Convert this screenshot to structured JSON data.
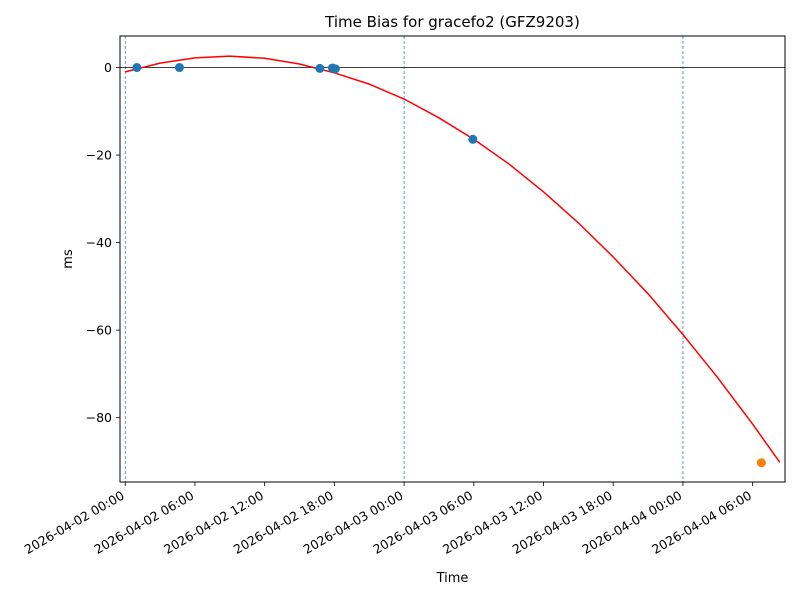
{
  "chart_data": {
    "type": "scatter",
    "title": "Time Bias for gracefo2 (GFZ9203)",
    "xlabel": "Time",
    "ylabel": "ms",
    "x_axis": "datetime",
    "xlim": [
      "2026-04-01T23:33",
      "2026-04-04T08:47"
    ],
    "ylim": [
      -94.7,
      7.2
    ],
    "x_ticks": [
      {
        "value": "2026-04-02T00:00",
        "label": "2026-04-02 00:00"
      },
      {
        "value": "2026-04-02T06:00",
        "label": "2026-04-02 06:00"
      },
      {
        "value": "2026-04-02T12:00",
        "label": "2026-04-02 12:00"
      },
      {
        "value": "2026-04-02T18:00",
        "label": "2026-04-02 18:00"
      },
      {
        "value": "2026-04-03T00:00",
        "label": "2026-04-03 00:00"
      },
      {
        "value": "2026-04-03T06:00",
        "label": "2026-04-03 06:00"
      },
      {
        "value": "2026-04-03T12:00",
        "label": "2026-04-03 12:00"
      },
      {
        "value": "2026-04-03T18:00",
        "label": "2026-04-03 18:00"
      },
      {
        "value": "2026-04-04T00:00",
        "label": "2026-04-04 00:00"
      },
      {
        "value": "2026-04-04T06:00",
        "label": "2026-04-04 06:00"
      }
    ],
    "y_ticks": [
      {
        "value": 0,
        "label": "0"
      },
      {
        "value": -20,
        "label": "−20"
      },
      {
        "value": -40,
        "label": "−40"
      },
      {
        "value": -60,
        "label": "−60"
      },
      {
        "value": -80,
        "label": "−80"
      }
    ],
    "vertical_lines": [
      "2026-04-02T00:00",
      "2026-04-03T00:00",
      "2026-04-04T00:00"
    ],
    "horizontal_line": 0,
    "fit_curve": {
      "color": "#ff0000",
      "points": [
        {
          "x": "2026-04-02T00:00",
          "y": -1.0
        },
        {
          "x": "2026-04-02T03:00",
          "y": 1.0
        },
        {
          "x": "2026-04-02T06:00",
          "y": 2.2
        },
        {
          "x": "2026-04-02T09:00",
          "y": 2.6
        },
        {
          "x": "2026-04-02T12:00",
          "y": 2.1
        },
        {
          "x": "2026-04-02T15:00",
          "y": 0.8
        },
        {
          "x": "2026-04-02T18:00",
          "y": -1.2
        },
        {
          "x": "2026-04-02T21:00",
          "y": -3.8
        },
        {
          "x": "2026-04-03T00:00",
          "y": -7.2
        },
        {
          "x": "2026-04-03T03:00",
          "y": -11.5
        },
        {
          "x": "2026-04-03T06:00",
          "y": -16.4
        },
        {
          "x": "2026-04-03T09:00",
          "y": -22.0
        },
        {
          "x": "2026-04-03T12:00",
          "y": -28.4
        },
        {
          "x": "2026-04-03T15:00",
          "y": -35.5
        },
        {
          "x": "2026-04-03T18:00",
          "y": -43.3
        },
        {
          "x": "2026-04-03T21:00",
          "y": -51.7
        },
        {
          "x": "2026-04-04T00:00",
          "y": -61.0
        },
        {
          "x": "2026-04-04T03:00",
          "y": -70.9
        },
        {
          "x": "2026-04-04T06:00",
          "y": -81.5
        },
        {
          "x": "2026-04-04T08:20",
          "y": -90.2
        }
      ]
    },
    "series": [
      {
        "color": "#1f77b4",
        "points": [
          {
            "x": "2026-04-02T01:00",
            "y": 0.0
          },
          {
            "x": "2026-04-02T04:40",
            "y": 0.0
          },
          {
            "x": "2026-04-02T16:45",
            "y": -0.2
          },
          {
            "x": "2026-04-02T17:50",
            "y": -0.1
          },
          {
            "x": "2026-04-02T18:05",
            "y": -0.3
          },
          {
            "x": "2026-04-03T05:55",
            "y": -16.4
          }
        ]
      },
      {
        "color": "#ff7f0e",
        "points": [
          {
            "x": "2026-04-04T06:45",
            "y": -90.3
          }
        ]
      }
    ]
  }
}
